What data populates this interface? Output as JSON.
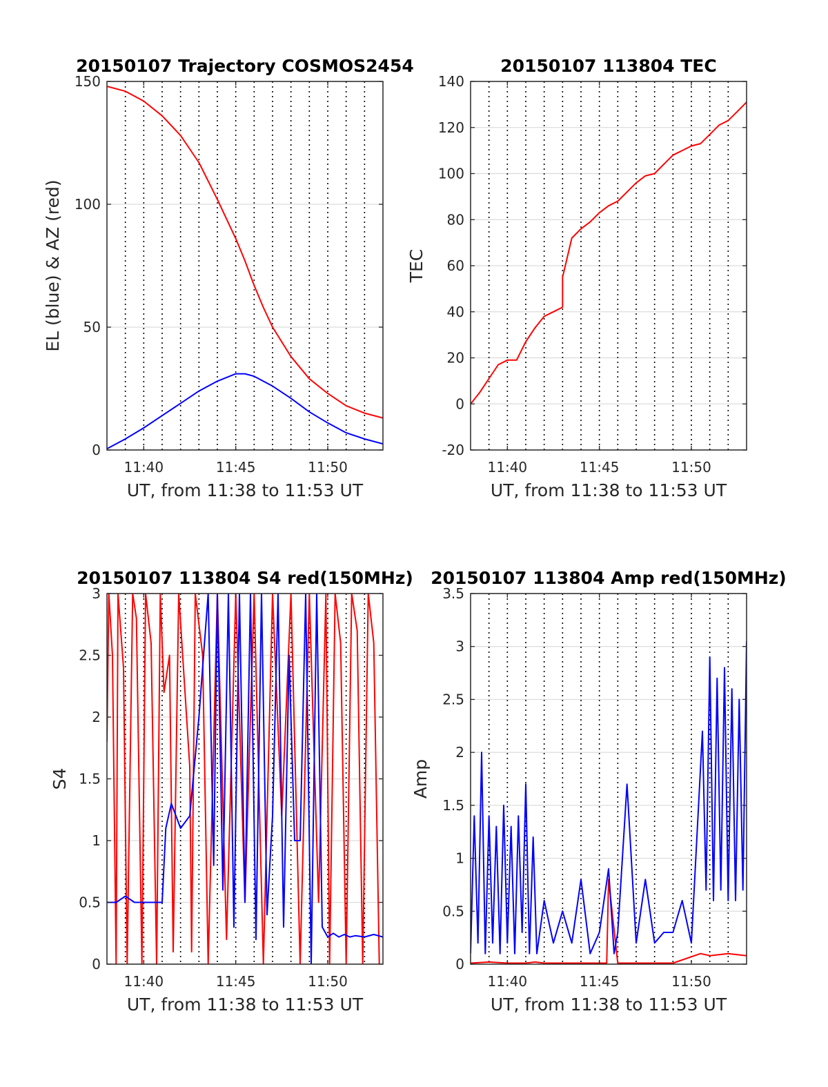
{
  "chart_data": [
    {
      "type": "line",
      "title": "20150107 Trajectory COSMOS2454",
      "xlabel": "UT, from 11:38 to 11:53 UT",
      "ylabel": "EL (blue) & AZ (red)",
      "xlim": [
        0,
        15
      ],
      "ylim": [
        0,
        150
      ],
      "x_ticks": [
        2,
        7,
        12
      ],
      "x_tick_labels": [
        "11:40",
        "11:45",
        "11:50"
      ],
      "y_ticks": [
        0,
        50,
        100,
        150
      ],
      "y_tick_labels": [
        "0",
        "50",
        "100",
        "150"
      ],
      "x_dotted_gridlines": [
        1,
        2,
        3,
        4,
        5,
        6,
        7,
        8,
        9,
        10,
        11,
        12,
        13,
        14
      ],
      "y_gridlines": true,
      "series": [
        {
          "color": "#ff0000",
          "x": [
            0,
            1,
            2,
            3,
            4,
            5,
            6,
            7,
            7.5,
            8,
            8.5,
            9,
            10,
            11,
            12,
            13,
            14,
            15
          ],
          "values": [
            148,
            146,
            142,
            136,
            128,
            117,
            102,
            86,
            77,
            67,
            58,
            50,
            38,
            29,
            23,
            18,
            15,
            13
          ]
        },
        {
          "color": "#0000ff",
          "x": [
            0,
            1,
            2,
            3,
            4,
            5,
            6,
            7,
            7.5,
            8,
            9,
            10,
            11,
            12,
            13,
            14,
            15
          ],
          "values": [
            0.5,
            4.5,
            9,
            14,
            19,
            24,
            28,
            31,
            31,
            30,
            26,
            21,
            15.5,
            11,
            7,
            4.5,
            2.5
          ]
        }
      ]
    },
    {
      "type": "line",
      "title": "20150107 113804 TEC",
      "xlabel": "UT, from 11:38 to 11:53 UT",
      "ylabel": "TEC",
      "xlim": [
        0,
        15
      ],
      "ylim": [
        -20,
        140
      ],
      "x_ticks": [
        2,
        7,
        12
      ],
      "x_tick_labels": [
        "11:40",
        "11:45",
        "11:50"
      ],
      "y_ticks": [
        -20,
        0,
        20,
        40,
        60,
        80,
        100,
        120,
        140
      ],
      "y_tick_labels": [
        "-20",
        "0",
        "20",
        "40",
        "60",
        "80",
        "100",
        "120",
        "140"
      ],
      "x_dotted_gridlines": [
        1,
        2,
        3,
        4,
        5,
        6,
        7,
        8,
        9,
        10,
        11,
        12,
        13,
        14
      ],
      "y_gridlines": true,
      "series": [
        {
          "color": "#ff0000",
          "x": [
            0,
            0.5,
            1,
            1.5,
            2,
            2.5,
            3,
            3.5,
            4,
            4.5,
            5,
            5,
            5.5,
            6,
            6.5,
            7,
            7.5,
            8,
            8.5,
            9,
            9.5,
            10,
            10.5,
            11,
            11.5,
            12,
            12.5,
            13,
            13.5,
            14,
            14.5,
            15
          ],
          "values": [
            0,
            5,
            11,
            17,
            19,
            19,
            27,
            33,
            38,
            40,
            42,
            55,
            72,
            76,
            79,
            83,
            86,
            88,
            92,
            96,
            99,
            100,
            104,
            108,
            110,
            112,
            113,
            117,
            121,
            123,
            127,
            131
          ]
        }
      ]
    },
    {
      "type": "line",
      "title": "20150107 113804 S4 red(150MHz)",
      "xlabel": "UT, from 11:38 to 11:53 UT",
      "ylabel": "S4",
      "xlim": [
        0,
        15
      ],
      "ylim": [
        0,
        3
      ],
      "x_ticks": [
        2,
        7,
        12
      ],
      "x_tick_labels": [
        "11:40",
        "11:45",
        "11:50"
      ],
      "y_ticks": [
        0,
        0.5,
        1,
        1.5,
        2,
        2.5,
        3
      ],
      "y_tick_labels": [
        "0",
        "0.5",
        "1",
        "1.5",
        "2",
        "2.5",
        "3"
      ],
      "x_dotted_gridlines": [
        1,
        2,
        3,
        4,
        5,
        6,
        7,
        8,
        9,
        10,
        11,
        12,
        13,
        14
      ],
      "y_gridlines": true,
      "series": [
        {
          "color": "#ff0000",
          "x": [
            0,
            0.1,
            0.3,
            0.5,
            0.6,
            0.9,
            1.1,
            1.4,
            1.6,
            1.9,
            2.1,
            2.4,
            2.7,
            2.9,
            3.1,
            3.4,
            3.6,
            3.9,
            4.2,
            4.5,
            4.6,
            4.8,
            5.2,
            5.5,
            6.0,
            6.5,
            7.0,
            7.5,
            8.0,
            8.5,
            9.0,
            9.5,
            10.0,
            10.5,
            11.0,
            11.5,
            11.9,
            12.1,
            12.4,
            12.7,
            13.0,
            13.3,
            13.6,
            13.9,
            14.2,
            14.5,
            14.8
          ],
          "values": [
            1.8,
            3,
            2.5,
            0,
            3,
            2.4,
            0,
            3,
            2.8,
            0,
            3,
            2.6,
            0,
            3,
            2.2,
            2.5,
            0.1,
            3,
            2.3,
            1.6,
            0.1,
            3,
            2.5,
            0,
            3,
            0.2,
            3,
            0.5,
            3,
            0,
            3,
            1.2,
            3,
            0,
            3,
            0.5,
            3,
            0,
            3,
            2.6,
            0,
            3,
            2.7,
            0,
            3,
            2.6,
            0
          ]
        },
        {
          "color": "#0000ff",
          "x": [
            0,
            0.5,
            1,
            1.5,
            2,
            2.5,
            3,
            3.2,
            3.5,
            4,
            4.5,
            5,
            5.5,
            5.8,
            6,
            6.3,
            6.6,
            6.9,
            7.2,
            7.5,
            7.8,
            8.1,
            8.4,
            8.7,
            9,
            9.3,
            9.6,
            9.9,
            10.2,
            10.5,
            10.8,
            11.1,
            11.4,
            11.7,
            12,
            12.3,
            12.6,
            12.9,
            13.2,
            13.5,
            14,
            14.5,
            15
          ],
          "values": [
            0.5,
            0.5,
            0.55,
            0.5,
            0.5,
            0.5,
            0.5,
            1.1,
            1.3,
            1.1,
            1.2,
            2.0,
            3,
            0.8,
            3,
            0.6,
            3,
            0.3,
            3,
            0.5,
            3,
            0.2,
            3,
            0.4,
            1.2,
            3,
            0.3,
            2.5,
            1.0,
            1.0,
            3,
            0,
            3,
            0.3,
            0.22,
            0.25,
            0.22,
            0.24,
            0.22,
            0.23,
            0.22,
            0.24,
            0.22
          ]
        }
      ]
    },
    {
      "type": "line",
      "title": "20150107 113804 Amp red(150MHz)",
      "xlabel": "UT, from 11:38 to 11:53 UT",
      "ylabel": "Amp",
      "xlim": [
        0,
        15
      ],
      "ylim": [
        0,
        3.5
      ],
      "x_ticks": [
        2,
        7,
        12
      ],
      "x_tick_labels": [
        "11:40",
        "11:45",
        "11:50"
      ],
      "y_ticks": [
        0,
        0.5,
        1,
        1.5,
        2,
        2.5,
        3,
        3.5
      ],
      "y_tick_labels": [
        "0",
        "0.5",
        "1",
        "1.5",
        "2",
        "2.5",
        "3",
        "3.5"
      ],
      "x_dotted_gridlines": [
        1,
        2,
        3,
        4,
        5,
        6,
        7,
        8,
        9,
        10,
        11,
        12,
        13,
        14
      ],
      "y_gridlines": true,
      "series": [
        {
          "color": "#ff0000",
          "x": [
            0,
            1,
            2,
            3,
            3.5,
            4,
            5,
            6,
            7,
            7.4,
            7.5,
            8,
            9,
            10,
            11,
            12.5,
            13,
            14,
            15
          ],
          "values": [
            0.01,
            0.02,
            0.01,
            0.01,
            0.02,
            0.01,
            0.01,
            0.01,
            0.01,
            0.01,
            0.8,
            0.01,
            0.01,
            0.01,
            0.01,
            0.1,
            0.08,
            0.1,
            0.08
          ]
        },
        {
          "color": "#0000ff",
          "x": [
            0,
            0.2,
            0.4,
            0.6,
            0.8,
            1,
            1.2,
            1.4,
            1.6,
            1.8,
            2,
            2.2,
            2.4,
            2.6,
            2.8,
            3,
            3.2,
            3.4,
            3.6,
            4,
            4.5,
            5,
            5.5,
            6,
            6.5,
            7,
            7.5,
            7.8,
            8,
            8.5,
            9,
            9.5,
            10,
            10.5,
            11,
            11.5,
            12,
            12.6,
            12.8,
            13,
            13.2,
            13.4,
            13.6,
            13.8,
            14,
            14.2,
            14.4,
            14.6,
            14.8,
            15
          ],
          "values": [
            0.1,
            1.4,
            0.2,
            2.0,
            0.1,
            1.4,
            0.2,
            1.3,
            0.1,
            1.5,
            0.2,
            1.3,
            0.1,
            1.4,
            0.3,
            1.7,
            0.1,
            1.2,
            0.1,
            0.6,
            0.2,
            0.5,
            0.2,
            0.8,
            0.1,
            0.3,
            0.9,
            0.1,
            0.3,
            1.7,
            0.2,
            0.8,
            0.2,
            0.3,
            0.3,
            0.6,
            0.2,
            2.2,
            0.7,
            2.9,
            0.6,
            2.7,
            0.7,
            2.8,
            0.6,
            2.6,
            0.6,
            2.5,
            0.7,
            3.05
          ]
        }
      ]
    }
  ]
}
